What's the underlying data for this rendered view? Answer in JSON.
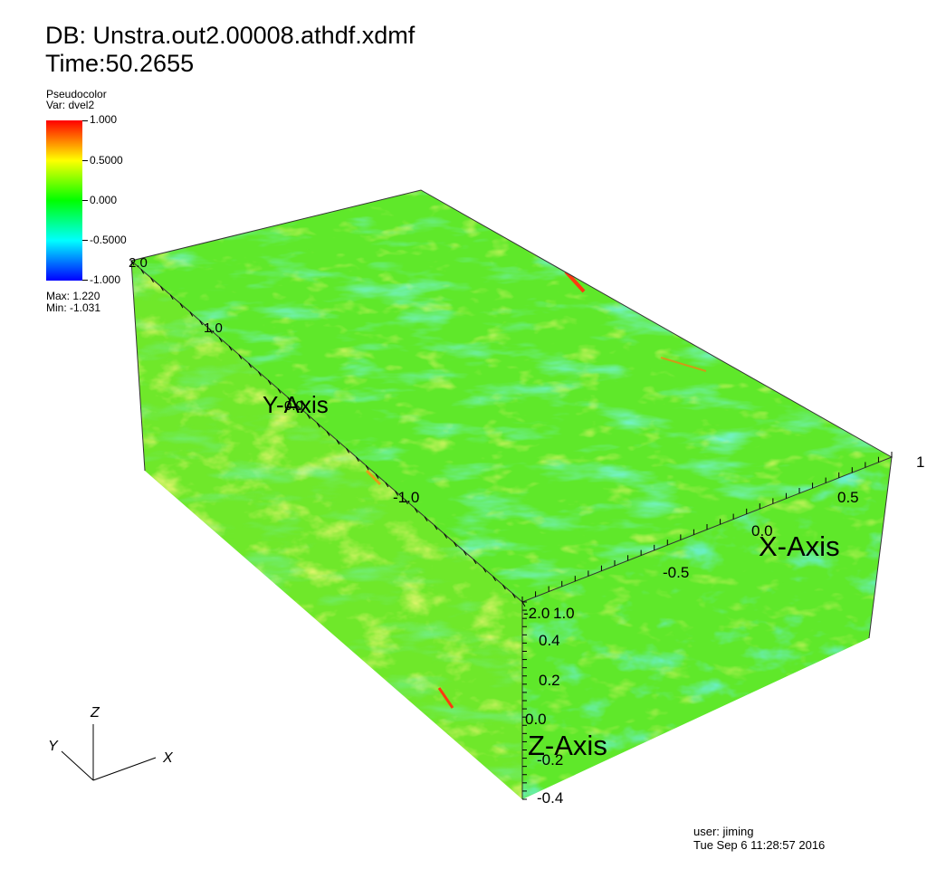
{
  "header": {
    "db_line": "DB: Unstra.out2.00008.athdf.xdmf",
    "time_line": "Time:50.2655"
  },
  "legend": {
    "plot_type": "Pseudocolor",
    "variable": "Var: dvel2",
    "ticks": [
      "1.000",
      "0.5000",
      "0.000",
      "-0.5000",
      "-1.000"
    ],
    "max_label": "Max:  1.220",
    "min_label": "Min: -1.031",
    "colors": [
      "#ff0000",
      "#ffff00",
      "#00ff00",
      "#00ffff",
      "#0000ff"
    ]
  },
  "axes": {
    "x_title": "X-Axis",
    "y_title": "Y-Axis",
    "z_title": "Z-Axis",
    "x_ticks": [
      "-0.5",
      "0.0",
      "0.5",
      "1"
    ],
    "y_ticks": [
      "-2.0",
      "-1.0",
      "0.0",
      "1.0",
      "2.0"
    ],
    "z_ticks": [
      "1.0",
      "0.4",
      "0.2",
      "0.0",
      "-0.2",
      "-0.4"
    ]
  },
  "triad": {
    "x": "X",
    "y": "Y",
    "z": "Z"
  },
  "footer": {
    "user": "user: jiming",
    "date": "Tue Sep  6 11:28:57 2016"
  },
  "palette": {
    "field_base": "#5fe82a",
    "field_cyan": "#2ee8b0",
    "field_yellow": "#d8ef2b",
    "field_red": "#ff3a10"
  }
}
